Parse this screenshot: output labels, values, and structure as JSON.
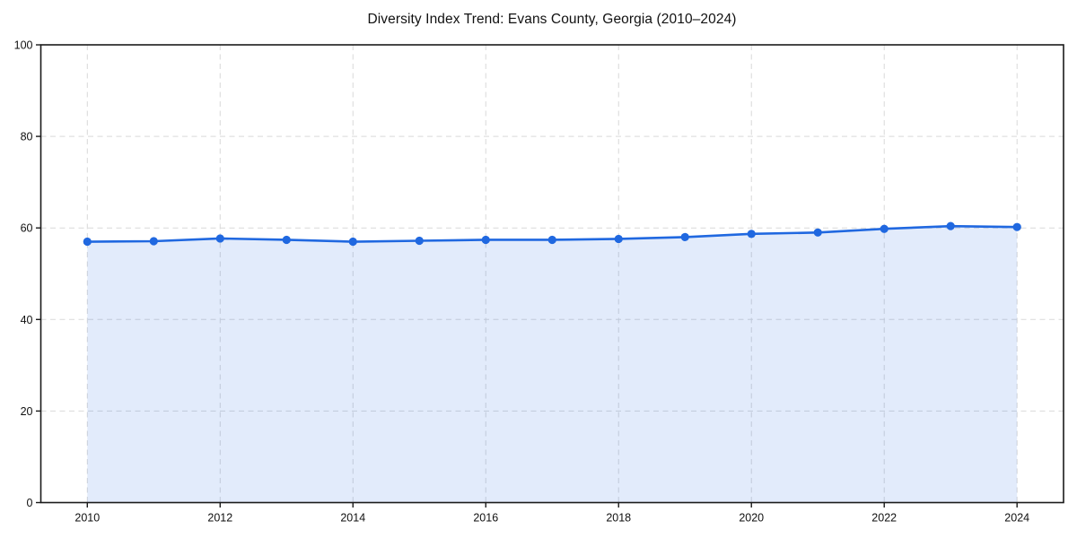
{
  "chart_data": {
    "type": "line",
    "title": "Diversity Index Trend: Evans County, Georgia (2010–2024)",
    "xlabel": "",
    "ylabel": "",
    "x": [
      2010,
      2011,
      2012,
      2013,
      2014,
      2015,
      2016,
      2017,
      2018,
      2019,
      2020,
      2021,
      2022,
      2023,
      2024
    ],
    "series": [
      {
        "name": "Diversity Index",
        "values": [
          57.0,
          57.1,
          57.7,
          57.4,
          57.0,
          57.2,
          57.4,
          57.4,
          57.6,
          58.0,
          58.7,
          59.0,
          59.8,
          60.4,
          60.2
        ]
      }
    ],
    "xlim": [
      2009.3,
      2024.7
    ],
    "ylim": [
      0,
      100
    ],
    "x_ticks": [
      2010,
      2012,
      2014,
      2016,
      2018,
      2020,
      2022,
      2024
    ],
    "y_ticks": [
      0,
      20,
      40,
      60,
      80,
      100
    ],
    "grid": true,
    "grid_style": "dashed",
    "legend": false,
    "area_fill": true,
    "colors": {
      "line": "#2068e0",
      "marker": "#2068e0",
      "fill": "#2068e0",
      "fill_opacity": 0.13,
      "grid": "#d9d9d9",
      "axis": "#1a1a1a",
      "text": "#111111"
    }
  }
}
